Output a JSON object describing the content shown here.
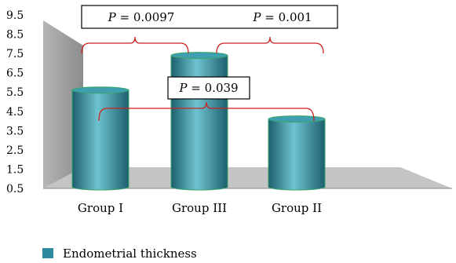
{
  "chart_data": {
    "type": "bar",
    "categories": [
      "Group I",
      "Group III",
      "Group II"
    ],
    "series": [
      {
        "name": "Endometrial thickness",
        "values": [
          5.6,
          7.4,
          4.1
        ]
      }
    ],
    "ylim": [
      0.5,
      9.5
    ],
    "yticks": [
      "0.5",
      "1.5",
      "2.5",
      "3.5",
      "4.5",
      "5.5",
      "6.5",
      "7.5",
      "8.5",
      "9.5"
    ],
    "annotations": [
      {
        "label": "P",
        "value": "= 0.0097",
        "between": [
          "Group I",
          "Group III"
        ]
      },
      {
        "label": "P",
        "value": "= 0.001",
        "between": [
          "Group III",
          "Group II"
        ]
      },
      {
        "label": "P",
        "value": "= 0.039",
        "between": [
          "Group I",
          "Group II"
        ]
      }
    ],
    "legend_position": "bottom-left",
    "colors": {
      "bar": "#2e8a9c",
      "bar_light": "#6fc3d0",
      "bar_dark": "#1d5f6e",
      "back_wall": "#9a9a9a",
      "floor": "#c4c4c4",
      "bracket": "#cc2222"
    }
  }
}
